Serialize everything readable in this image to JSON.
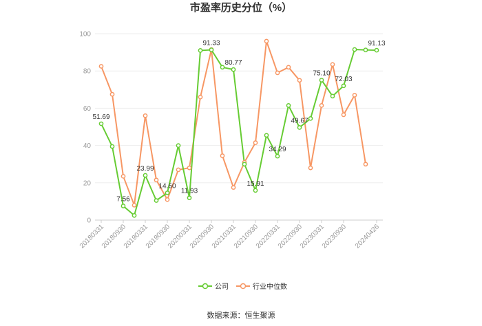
{
  "chart_data": {
    "type": "line",
    "title": "市盈率历史分位（%）",
    "categories": [
      "20180331",
      "20180630",
      "20180930",
      "20181231",
      "20190331",
      "20190630",
      "20190930",
      "20191231",
      "20200331",
      "20200630",
      "20200930",
      "20201231",
      "20210331",
      "20210630",
      "20210930",
      "20211231",
      "20220331",
      "20220630",
      "20220930",
      "20221231",
      "20230331",
      "20230630",
      "20230930",
      "20231231",
      "20240331",
      "20240426"
    ],
    "x_tick_labels": [
      "20180331",
      "20180930",
      "20190331",
      "20190930",
      "20200331",
      "20200930",
      "20210331",
      "20210930",
      "20220331",
      "20220930",
      "20230331",
      "20230930",
      "20240426"
    ],
    "ylim": [
      0,
      100
    ],
    "y_ticks": [
      0,
      20,
      40,
      60,
      80,
      100
    ],
    "grid": true,
    "legend_position": "bottom",
    "series": [
      {
        "name": "公司",
        "color": "#66cc33",
        "values": [
          51.69,
          39.5,
          7.56,
          2.5,
          23.99,
          10.5,
          14.6,
          40.0,
          11.93,
          91.0,
          91.33,
          82.0,
          80.77,
          30.0,
          15.91,
          45.5,
          34.29,
          61.5,
          49.67,
          54.5,
          75.1,
          66.5,
          72.03,
          91.5,
          91.3,
          91.13
        ]
      },
      {
        "name": "行业中位数",
        "color": "#f79764",
        "values": [
          82.5,
          67.5,
          23.5,
          8.0,
          56.0,
          21.5,
          11.0,
          27.0,
          28.0,
          66.0,
          91.5,
          34.5,
          17.5,
          31.0,
          41.5,
          96.0,
          79.0,
          82.0,
          75.0,
          28.0,
          61.5,
          83.5,
          56.5,
          67.0,
          30.0,
          null
        ]
      }
    ],
    "labels": [
      {
        "index": 0,
        "text": "51.69",
        "pos": "above"
      },
      {
        "index": 2,
        "text": "7.56",
        "pos": "above"
      },
      {
        "index": 4,
        "text": "23.99",
        "pos": "above"
      },
      {
        "index": 6,
        "text": "14.60",
        "pos": "above"
      },
      {
        "index": 8,
        "text": "11.93",
        "pos": "above"
      },
      {
        "index": 10,
        "text": "91.33",
        "pos": "above"
      },
      {
        "index": 12,
        "text": "80.77",
        "pos": "above"
      },
      {
        "index": 14,
        "text": "15.91",
        "pos": "above"
      },
      {
        "index": 16,
        "text": "34.29",
        "pos": "above"
      },
      {
        "index": 18,
        "text": "49.67",
        "pos": "above"
      },
      {
        "index": 20,
        "text": "75.10",
        "pos": "above"
      },
      {
        "index": 22,
        "text": "72.03",
        "pos": "above"
      },
      {
        "index": 25,
        "text": "91.13",
        "pos": "above"
      }
    ]
  },
  "source": "数据来源：恒生聚源"
}
